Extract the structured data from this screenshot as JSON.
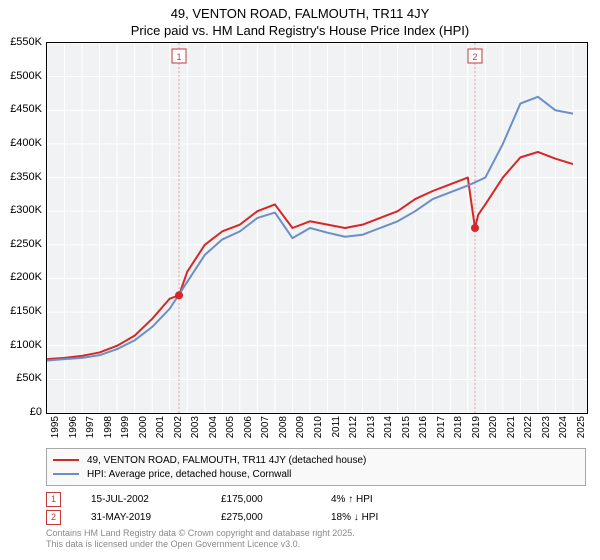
{
  "title": {
    "line1": "49, VENTON ROAD, FALMOUTH, TR11 4JY",
    "line2": "Price paid vs. HM Land Registry's House Price Index (HPI)"
  },
  "chart": {
    "type": "line",
    "background_color": "#f1f2f3",
    "grid_color": "#ffffff",
    "border_color": "#000000",
    "x_range": [
      1995,
      2025.8
    ],
    "x_ticks": [
      1995,
      1996,
      1997,
      1998,
      1999,
      2000,
      2001,
      2002,
      2003,
      2004,
      2005,
      2006,
      2007,
      2008,
      2009,
      2010,
      2011,
      2012,
      2013,
      2014,
      2015,
      2016,
      2017,
      2018,
      2019,
      2020,
      2021,
      2022,
      2023,
      2024,
      2025
    ],
    "y_range": [
      0,
      550
    ],
    "y_ticks": [
      0,
      50,
      100,
      150,
      200,
      250,
      300,
      350,
      400,
      450,
      500,
      550
    ],
    "y_tick_labels": [
      "£0",
      "£50K",
      "£100K",
      "£150K",
      "£200K",
      "£250K",
      "£300K",
      "£350K",
      "£400K",
      "£450K",
      "£500K",
      "£550K"
    ],
    "tick_fontsize": 11,
    "xtick_fontsize": 10,
    "series": [
      {
        "name": "property",
        "color": "#d62728",
        "width": 2,
        "points": [
          [
            1995,
            80
          ],
          [
            1996,
            82
          ],
          [
            1997,
            85
          ],
          [
            1998,
            90
          ],
          [
            1999,
            100
          ],
          [
            2000,
            115
          ],
          [
            2001,
            140
          ],
          [
            2002,
            170
          ],
          [
            2002.53,
            175
          ],
          [
            2003,
            210
          ],
          [
            2004,
            250
          ],
          [
            2005,
            270
          ],
          [
            2006,
            280
          ],
          [
            2007,
            300
          ],
          [
            2008,
            310
          ],
          [
            2009,
            275
          ],
          [
            2010,
            285
          ],
          [
            2011,
            280
          ],
          [
            2012,
            275
          ],
          [
            2013,
            280
          ],
          [
            2014,
            290
          ],
          [
            2015,
            300
          ],
          [
            2016,
            318
          ],
          [
            2017,
            330
          ],
          [
            2018,
            340
          ],
          [
            2019,
            350
          ],
          [
            2019.41,
            275
          ],
          [
            2019.6,
            295
          ],
          [
            2020,
            310
          ],
          [
            2021,
            350
          ],
          [
            2022,
            380
          ],
          [
            2023,
            388
          ],
          [
            2024,
            378
          ],
          [
            2025,
            370
          ]
        ]
      },
      {
        "name": "hpi",
        "color": "#6b8fc7",
        "width": 2,
        "points": [
          [
            1995,
            78
          ],
          [
            1996,
            80
          ],
          [
            1997,
            82
          ],
          [
            1998,
            86
          ],
          [
            1999,
            95
          ],
          [
            2000,
            108
          ],
          [
            2001,
            128
          ],
          [
            2002,
            155
          ],
          [
            2003,
            195
          ],
          [
            2004,
            235
          ],
          [
            2005,
            258
          ],
          [
            2006,
            270
          ],
          [
            2007,
            290
          ],
          [
            2008,
            298
          ],
          [
            2009,
            260
          ],
          [
            2010,
            275
          ],
          [
            2011,
            268
          ],
          [
            2012,
            262
          ],
          [
            2013,
            265
          ],
          [
            2014,
            275
          ],
          [
            2015,
            285
          ],
          [
            2016,
            300
          ],
          [
            2017,
            318
          ],
          [
            2018,
            328
          ],
          [
            2019,
            338
          ],
          [
            2020,
            350
          ],
          [
            2021,
            400
          ],
          [
            2022,
            460
          ],
          [
            2023,
            470
          ],
          [
            2024,
            450
          ],
          [
            2025,
            445
          ]
        ]
      }
    ],
    "sale_markers": [
      {
        "id": "1",
        "x": 2002.53,
        "y": 175,
        "line_color": "#e8a0a0"
      },
      {
        "id": "2",
        "x": 2019.41,
        "y": 275,
        "line_color": "#e8a0a0"
      }
    ],
    "marker_dot_color": "#d62728",
    "marker_dot_radius": 4,
    "marker_box_border": "#c23b3b",
    "marker_box_text": "#c23b3b"
  },
  "legend": {
    "items": [
      {
        "color": "#d62728",
        "label": "49, VENTON ROAD, FALMOUTH, TR11 4JY (detached house)"
      },
      {
        "color": "#6b8fc7",
        "label": "HPI: Average price, detached house, Cornwall"
      }
    ],
    "fontsize": 10
  },
  "sales": [
    {
      "id": "1",
      "date": "15-JUL-2002",
      "price": "£175,000",
      "diff": "4% ↑ HPI"
    },
    {
      "id": "2",
      "date": "31-MAY-2019",
      "price": "£275,000",
      "diff": "18% ↓ HPI"
    }
  ],
  "footer": {
    "line1": "Contains HM Land Registry data © Crown copyright and database right 2025.",
    "line2": "This data is licensed under the Open Government Licence v3.0."
  }
}
